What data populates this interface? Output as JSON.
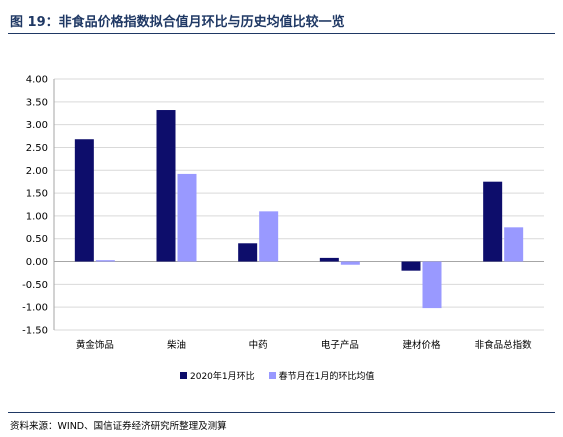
{
  "figure": {
    "title": "图 19：非食品价格指数拟合值月环比与历史均值比较一览",
    "source": "资料来源：WIND、国信证券经济研究所整理及测算"
  },
  "colors": {
    "header_rule": "#1f3864",
    "series_2020": "#0d0d6b",
    "series_avg": "#9999ff",
    "grid": "#d9d9d9",
    "axis": "#a6a6a6"
  },
  "chart_data": {
    "type": "bar",
    "categories": [
      "黄金饰品",
      "柴油",
      "中药",
      "电子产品",
      "建材价格",
      "非食品总指数"
    ],
    "series": [
      {
        "name": "2020年1月环比",
        "values": [
          2.68,
          3.32,
          0.4,
          0.08,
          -0.2,
          1.75
        ]
      },
      {
        "name": "春节月在1月的环比均值",
        "values": [
          0.03,
          1.92,
          1.1,
          -0.07,
          -1.02,
          0.75
        ]
      }
    ],
    "ylim": [
      -1.5,
      4.0
    ],
    "yticks": [
      "4.00",
      "3.50",
      "3.00",
      "2.50",
      "2.00",
      "1.50",
      "1.00",
      "0.50",
      "0.00",
      "-0.50",
      "-1.00",
      "-1.50"
    ],
    "ytick_values": [
      4.0,
      3.5,
      3.0,
      2.5,
      2.0,
      1.5,
      1.0,
      0.5,
      0.0,
      -0.5,
      -1.0,
      -1.5
    ],
    "grid": true,
    "legend_position": "bottom",
    "title": "",
    "xlabel": "",
    "ylabel": ""
  }
}
